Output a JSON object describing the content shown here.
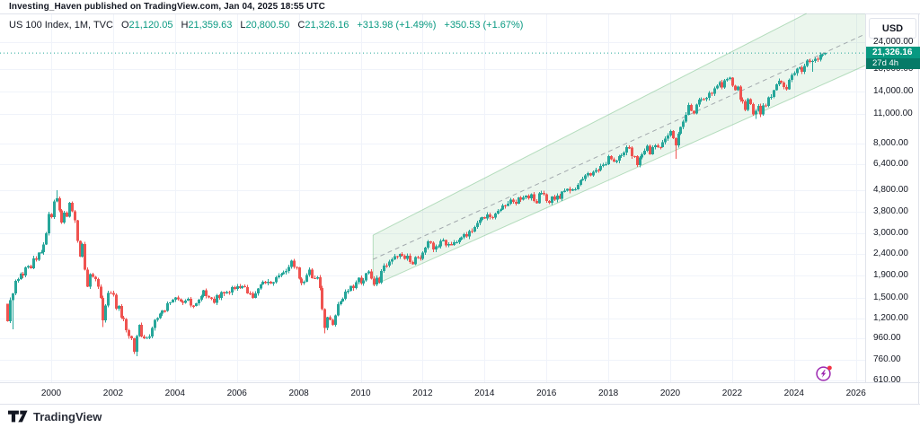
{
  "attribution": "Investing_Haven published on TradingView.com, Jan 04, 2025 18:55 UTC",
  "legend": {
    "symbol": "US 100 Index, 1M, TVC",
    "ohlc": [
      {
        "label": "O",
        "value": "21,120.05"
      },
      {
        "label": "H",
        "value": "21,359.63"
      },
      {
        "label": "L",
        "value": "20,800.50"
      },
      {
        "label": "C",
        "value": "21,326.16"
      }
    ],
    "change_abs": "+313.98 (+1.49%)",
    "change_pct2": "+350.53 (+1.67%)"
  },
  "price_scale": {
    "currency_label": "USD",
    "labels": [
      "24,000.00",
      "18,000.00",
      "14,000.00",
      "11,000.00",
      "8,000.00",
      "6,400.00",
      "4,800.00",
      "3,800.00",
      "3,000.00",
      "2,400.00",
      "1,900.00",
      "1,500.00",
      "1,200.00",
      "960.00",
      "760.00",
      "610.00"
    ],
    "values": [
      24000,
      18000,
      14000,
      11000,
      8000,
      6400,
      4800,
      3800,
      3000,
      2400,
      1900,
      1500,
      1200,
      960,
      760,
      610
    ],
    "current_price_label": "21,326.16",
    "countdown": "27d 4h"
  },
  "time_scale": {
    "years": [
      2000,
      2002,
      2004,
      2006,
      2008,
      2010,
      2012,
      2014,
      2016,
      2018,
      2020,
      2022,
      2024,
      2026
    ]
  },
  "footer": {
    "brand": "TradingView"
  },
  "colors": {
    "up": "#26a69a",
    "down": "#ef5350",
    "accent": "#089981",
    "badge_countdown": "#067a67",
    "grid": "#f0f3fa",
    "frame": "#e0e3eb",
    "channel_fill": "rgba(103,183,119,0.13)",
    "channel_stroke": "rgba(103,183,119,0.45)",
    "midline": "#9aa0a6",
    "flash_purple": "#9c27b0",
    "alert_red": "#f23645"
  },
  "chart_data": {
    "type": "candlestick",
    "title": "US 100 Index, 1M (monthly candles, log price scale)",
    "y_scale": "log",
    "ylim": [
      560,
      27000
    ],
    "x_range": [
      "1998-08",
      "2025-01"
    ],
    "grid": true,
    "start": "1998-08",
    "first_open": 1400,
    "closes": [
      1161,
      1462,
      1566,
      1797,
      1836,
      1942,
      1905,
      2083,
      2108,
      2062,
      2296,
      2263,
      2440,
      2452,
      2671,
      3008,
      3707,
      3590,
      4268,
      4398,
      3861,
      3386,
      3764,
      3607,
      4206,
      3828,
      3469,
      2771,
      2341,
      2680,
      2034,
      1691,
      1935,
      1878,
      1831,
      1687,
      1496,
      1172,
      1378,
      1578,
      1577,
      1546,
      1329,
      1370,
      1204,
      1186,
      1052,
      986,
      963,
      832,
      989,
      1115,
      984,
      966,
      971,
      984,
      1078,
      1180,
      1201,
      1262,
      1301,
      1297,
      1407,
      1426,
      1468,
      1503,
      1470,
      1439,
      1420,
      1453,
      1483,
      1373,
      1372,
      1409,
      1467,
      1521,
      1621,
      1524,
      1505,
      1482,
      1420,
      1541,
      1494,
      1590,
      1566,
      1594,
      1584,
      1684,
      1645,
      1696,
      1662,
      1699,
      1684,
      1570,
      1568,
      1493,
      1566,
      1654,
      1732,
      1779,
      1757,
      1784,
      1749,
      1769,
      1868,
      1905,
      1935,
      1973,
      2004,
      2092,
      2239,
      2096,
      2085,
      1845,
      1757,
      1780,
      1920,
      2033,
      1855,
      1847,
      1874,
      1663,
      1325,
      1076,
      1212,
      1180,
      1117,
      1237,
      1394,
      1437,
      1478,
      1602,
      1614,
      1701,
      1662,
      1769,
      1860,
      1745,
      1811,
      1950,
      1996,
      1847,
      1730,
      1865,
      1766,
      1999,
      2124,
      2120,
      2218,
      2277,
      2351,
      2337,
      2404,
      2363,
      2288,
      2363,
      2206,
      2154,
      2330,
      2312,
      2278,
      2440,
      2584,
      2755,
      2724,
      2525,
      2615,
      2616,
      2778,
      2799,
      2646,
      2678,
      2660,
      2732,
      2738,
      2818,
      2888,
      2982,
      2910,
      3090,
      3074,
      3219,
      3377,
      3487,
      3592,
      3538,
      3696,
      3591,
      3580,
      3737,
      3844,
      3906,
      4082,
      4049,
      4158,
      4347,
      4236,
      4157,
      4442,
      4342,
      4451,
      4528,
      4397,
      4593,
      4283,
      4181,
      4658,
      4664,
      4593,
      4279,
      4201,
      4484,
      4341,
      4536,
      4393,
      4730,
      4783,
      4875,
      4792,
      4854,
      4863,
      5110,
      5349,
      5437,
      5647,
      5789,
      5647,
      5880,
      5988,
      5979,
      6268,
      6364,
      6396,
      6958,
      6740,
      6581,
      6625,
      6970,
      7041,
      7244,
      7671,
      7627,
      6966,
      6949,
      6330,
      6869,
      7098,
      7379,
      7778,
      7109,
      7671,
      7848,
      7691,
      7689,
      8084,
      8404,
      8733,
      9151,
      8461,
      7813,
      8890,
      9556,
      10157,
      10906,
      12110,
      11418,
      11052,
      12198,
      12888,
      12925,
      12909,
      13092,
      13860,
      13687,
      14555,
      14960,
      15582,
      14690,
      15850,
      16136,
      16320,
      14930,
      14238,
      14839,
      12855,
      12642,
      11504,
      12948,
      12272,
      10971,
      11406,
      12030,
      10939,
      12101,
      12042,
      13181,
      13245,
      14254,
      15179,
      15757,
      15501,
      14715,
      14410,
      15947,
      16825,
      17137,
      18043,
      18254,
      17441,
      18536,
      19682,
      19362,
      19575,
      20060,
      19890,
      20930,
      21012,
      21326.16
    ],
    "overrides": {
      "1998-10": {
        "low": 1063
      },
      "2000-03": {
        "high": 4816
      },
      "2001-09": {
        "low": 1089
      },
      "2002-10": {
        "low": 795
      },
      "2008-11": {
        "low": 1018
      },
      "2020-03": {
        "low": 6772
      },
      "2022-10": {
        "low": 10440
      },
      "2024-08": {
        "low": 17435
      },
      "2025-01": {
        "open": 21120.05,
        "high": 21359.63,
        "low": 20800.5,
        "close": 21326.16
      }
    },
    "current_price": 21326.16,
    "channel": {
      "top": [
        [
          2010.4,
          2955
        ],
        [
          2024.4,
          32780
        ]
      ],
      "bottom": [
        [
          2010.4,
          1712
        ],
        [
          2026.3,
          18630
        ]
      ],
      "mid": [
        [
          2010.4,
          2272
        ],
        [
          2026.3,
          26200
        ]
      ]
    }
  }
}
